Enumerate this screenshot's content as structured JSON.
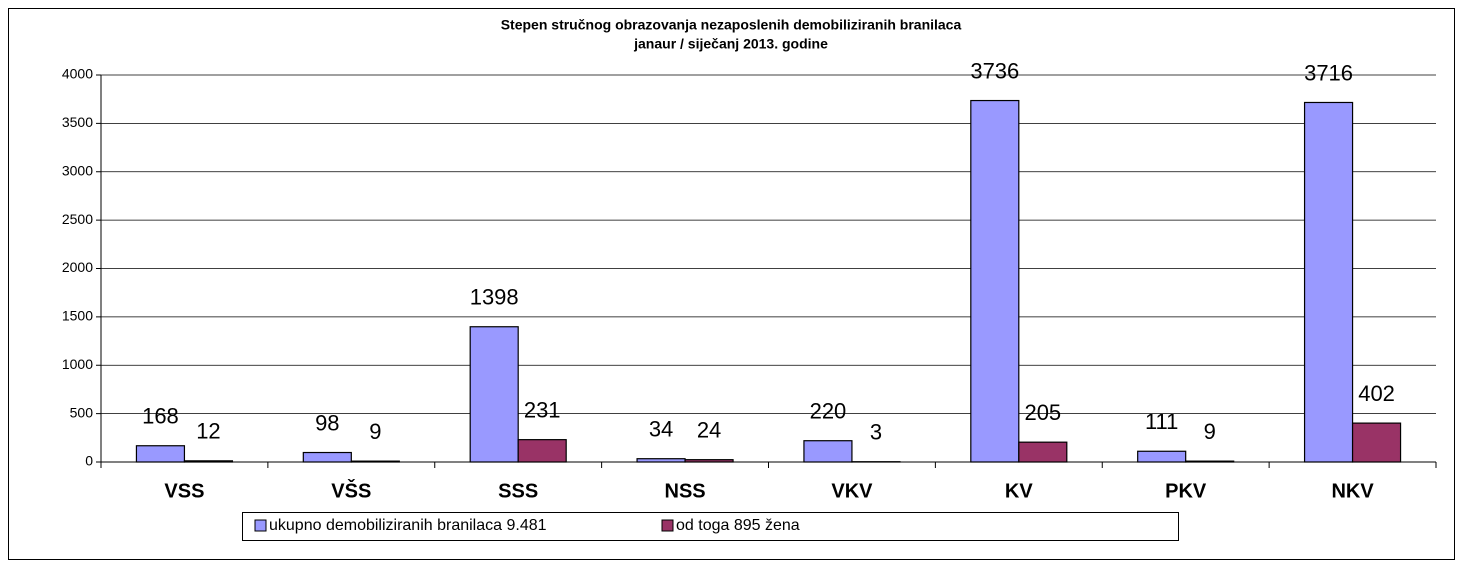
{
  "chart_data": {
    "type": "bar",
    "title": "Stepen stručnog obrazovanja nezaposlenih demobiliziranih branilaca",
    "subtitle": "janaur / siječanj  2013. godine",
    "categories": [
      "VSS",
      "VŠS",
      "SSS",
      "NSS",
      "VKV",
      "KV",
      "PKV",
      "NKV"
    ],
    "series": [
      {
        "name": "ukupno demobiliziranih branilaca 9.481",
        "color": "#9999ff",
        "values": [
          168,
          98,
          1398,
          34,
          220,
          3736,
          111,
          3716
        ]
      },
      {
        "name": "od toga 895 žena",
        "color": "#993366",
        "values": [
          12,
          9,
          231,
          24,
          3,
          205,
          9,
          402
        ]
      }
    ],
    "ylim": [
      0,
      4000
    ],
    "yticks": [
      0,
      500,
      1000,
      1500,
      2000,
      2500,
      3000,
      3500,
      4000
    ],
    "grid": true,
    "legend": "bottom"
  }
}
